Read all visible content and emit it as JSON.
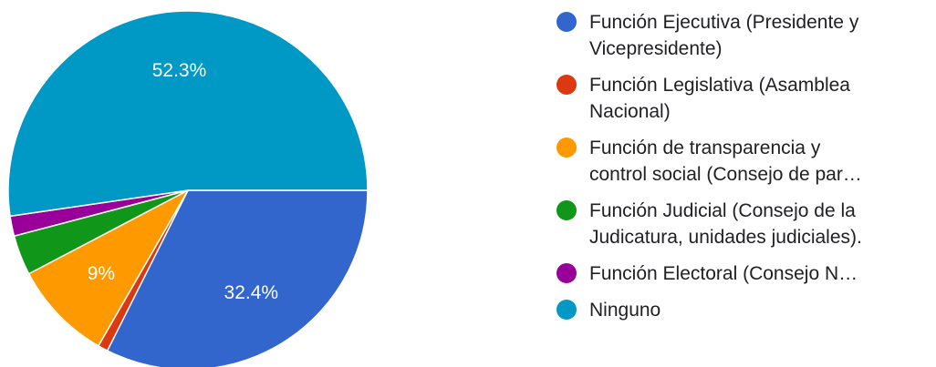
{
  "chart_data": {
    "type": "pie",
    "slices": [
      {
        "label": "Función Ejecutiva (Presidente y\nVicepresidente)",
        "value": 32.4,
        "value_label": "32.4%",
        "color": "#3366cc"
      },
      {
        "label": "Función Legislativa (Asamblea\nNacional)",
        "value": 0.9,
        "value_label": "",
        "color": "#dc3912"
      },
      {
        "label": "Función de transparencia y\ncontrol social (Consejo de par…",
        "value": 9,
        "value_label": "9%",
        "color": "#ff9900"
      },
      {
        "label": "Función Judicial (Consejo de la\nJudicatura, unidades judiciales).",
        "value": 3.6,
        "value_label": "",
        "color": "#109618"
      },
      {
        "label": "Función Electoral (Consejo N…",
        "value": 1.8,
        "value_label": "",
        "color": "#990099"
      },
      {
        "label": "Ninguno",
        "value": 52.3,
        "value_label": "52.3%",
        "color": "#0099c6"
      }
    ],
    "legend_position": "right"
  }
}
